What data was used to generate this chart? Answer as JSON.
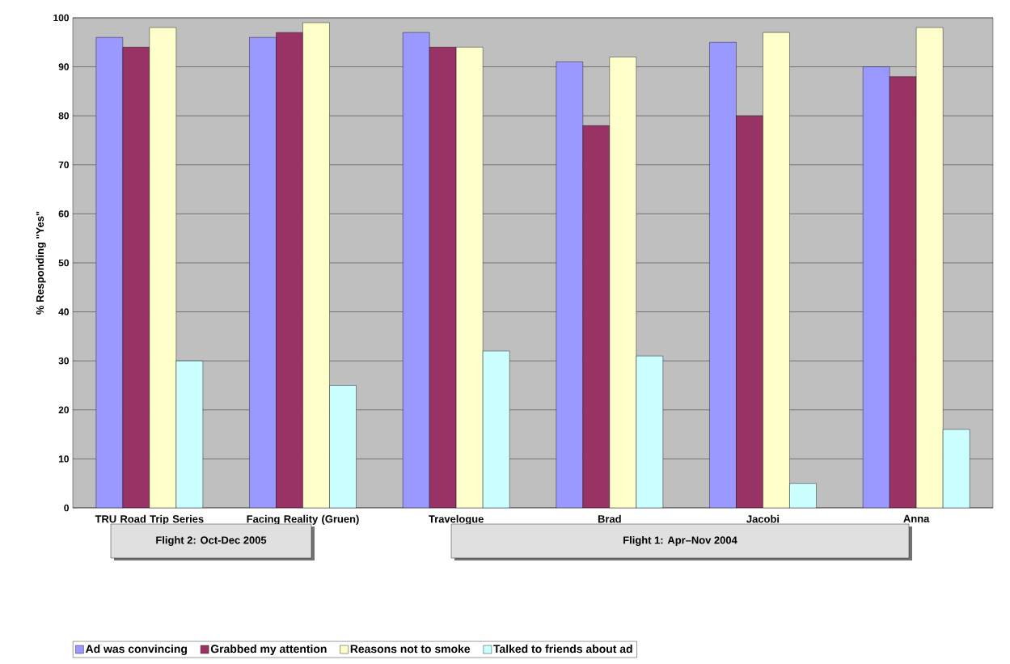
{
  "chart_data": {
    "type": "bar",
    "ylabel": "% Responding \"Yes\"",
    "categories": [
      "TRU Road Trip Series",
      "Facing Reality (Gruen)",
      "Travelogue",
      "Brad",
      "Jacobi",
      "Anna"
    ],
    "series": [
      {
        "name": "Ad was convincing",
        "color": "#9999ff",
        "values": [
          96,
          96,
          97,
          91,
          95,
          90
        ]
      },
      {
        "name": "Grabbed my attention",
        "color": "#993366",
        "values": [
          94,
          97,
          94,
          78,
          80,
          88
        ]
      },
      {
        "name": "Reasons not to smoke",
        "color": "#ffffcc",
        "values": [
          98,
          99,
          94,
          92,
          97,
          98
        ]
      },
      {
        "name": "Talked to friends about ad",
        "color": "#ccffff",
        "values": [
          30,
          25,
          32,
          31,
          5,
          16
        ]
      }
    ],
    "ylim": [
      0,
      100
    ],
    "yticks": [
      0,
      10,
      20,
      30,
      40,
      50,
      60,
      70,
      80,
      90,
      100
    ],
    "grid": "y",
    "legend": "bottom",
    "annotations": [
      "Flight 2: Oct-Dec 2005",
      "Flight 1: Apr–Nov 2004"
    ]
  }
}
